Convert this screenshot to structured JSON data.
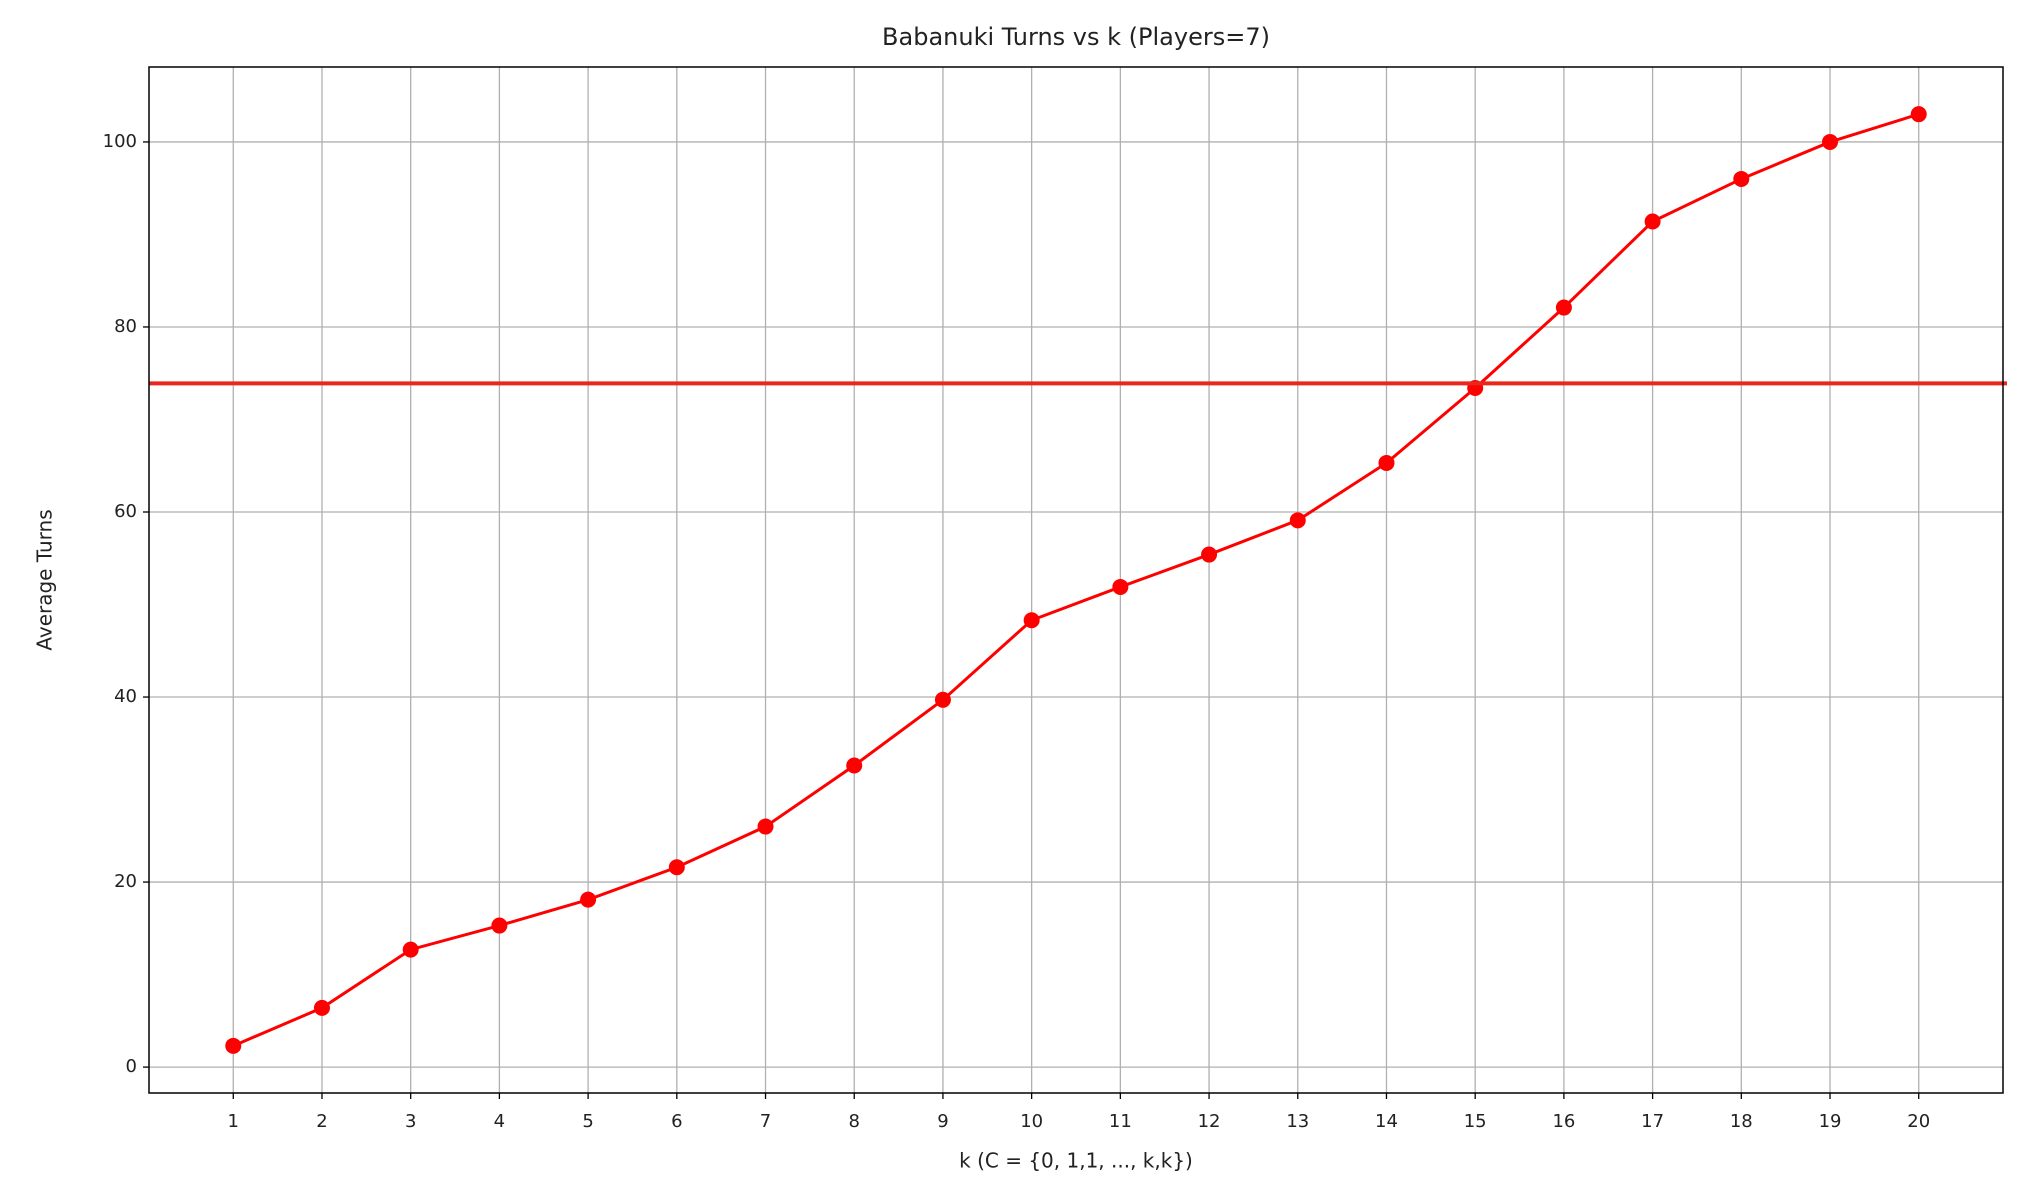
{
  "chart_data": {
    "type": "line",
    "title": "Babanuki Turns vs k (Players=7)",
    "x_label": "k (C = {0, 1,1, ..., k,k})",
    "y_label": "Average Turns",
    "x": [
      1,
      2,
      3,
      4,
      5,
      6,
      7,
      8,
      9,
      10,
      11,
      12,
      13,
      14,
      15,
      16,
      17,
      18,
      19,
      20
    ],
    "series": [
      {
        "color": "#ff0000",
        "values": [
          2.3,
          6.4,
          12.7,
          15.3,
          18.1,
          21.6,
          26.0,
          32.6,
          39.7,
          48.3,
          51.9,
          55.4,
          59.1,
          65.3,
          73.4,
          82.1,
          91.4,
          96.0,
          100.0,
          103.0
        ]
      }
    ],
    "reference_line": {
      "value": 73.9,
      "color": "#e8281c"
    },
    "xlim": [
      0.05,
      20.95
    ],
    "ylim": [
      -2.8,
      108.1
    ],
    "xticks": [
      1,
      2,
      3,
      4,
      5,
      6,
      7,
      8,
      9,
      10,
      11,
      12,
      13,
      14,
      15,
      16,
      17,
      18,
      19,
      20
    ],
    "yticks": [
      0,
      20,
      40,
      60,
      80,
      100
    ],
    "grid": true
  }
}
